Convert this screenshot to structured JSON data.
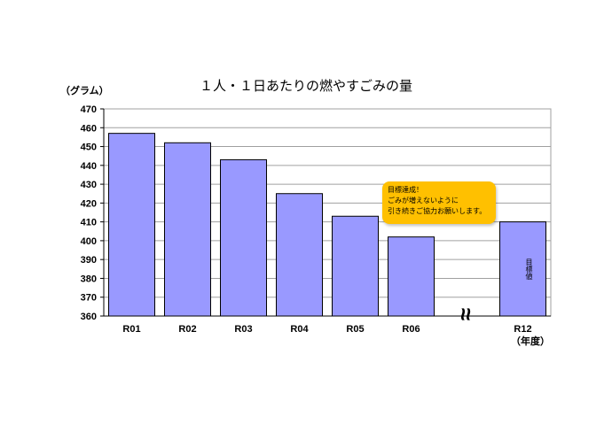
{
  "chart_data": {
    "type": "bar",
    "title": "１人・１日あたりの燃やすごみの量",
    "ylabel": "（グラム）",
    "xlabel_suffix": "（年度）",
    "ylim": [
      360,
      470
    ],
    "yticks": [
      360,
      370,
      380,
      390,
      400,
      410,
      420,
      430,
      440,
      450,
      460,
      470
    ],
    "grid": true,
    "categories": [
      "R01",
      "R02",
      "R03",
      "R04",
      "R05",
      "R06",
      "R12"
    ],
    "values": [
      457,
      452,
      443,
      425,
      413,
      402,
      410
    ],
    "axis_break_marker": "≈",
    "bar_color": "#9999ff",
    "target_bar_label": "目標値",
    "callout": {
      "lines": [
        "目標達成！",
        "ごみが増えないように",
        "引き続きご協力お願いします。"
      ],
      "color": "#ffc000"
    }
  }
}
